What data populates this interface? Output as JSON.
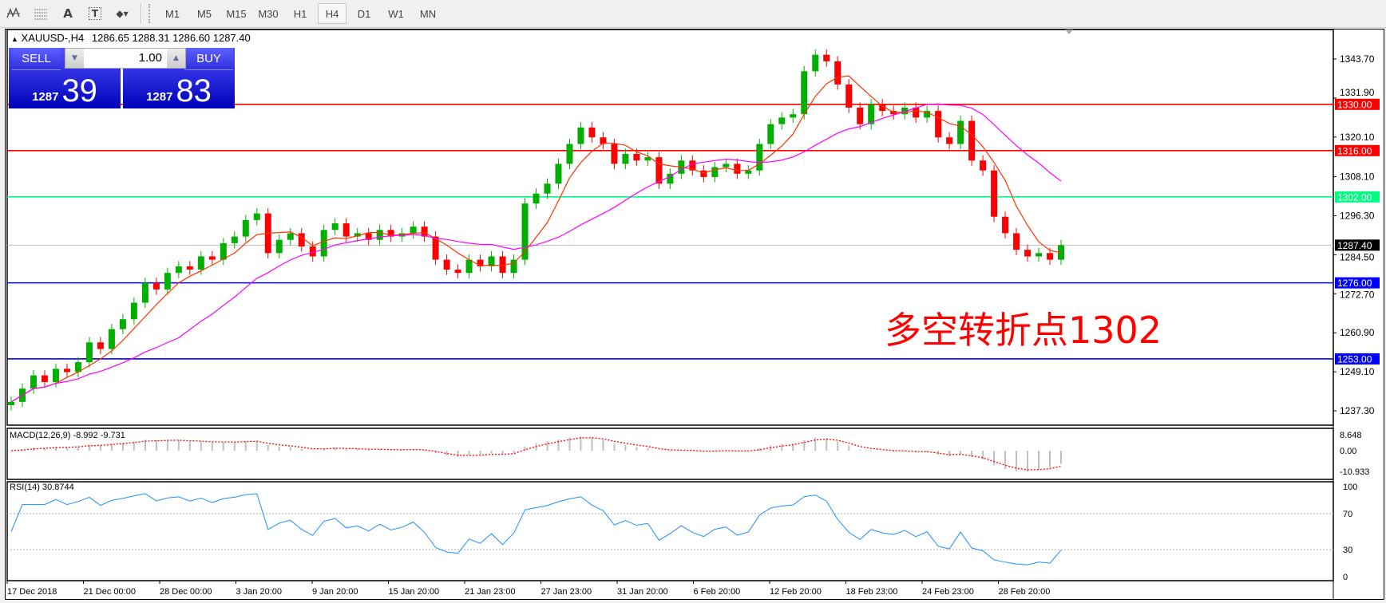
{
  "toolbar": {
    "tools": [
      {
        "name": "elliott-wave-icon",
        "label": ""
      },
      {
        "name": "fibonacci-fan-icon",
        "label": ""
      },
      {
        "name": "text-tool-icon",
        "label": "A"
      },
      {
        "name": "text-label-icon",
        "label": "T"
      },
      {
        "name": "arrows-dropdown-icon",
        "label": ""
      }
    ],
    "timeframes": [
      "M1",
      "M5",
      "M15",
      "M30",
      "H1",
      "H4",
      "D1",
      "W1",
      "MN"
    ],
    "active_timeframe": "H4"
  },
  "chart_header": {
    "symbol": "XAUUSD-,H4",
    "ohlc": "1286.65 1288.31 1286.60 1287.40"
  },
  "trade_panel": {
    "sell_label": "SELL",
    "buy_label": "BUY",
    "lot": "1.00",
    "sell_price_prefix": "1287",
    "sell_price_big": "39",
    "buy_price_prefix": "1287",
    "buy_price_big": "83",
    "color": "#0000c0"
  },
  "annotation": "多空转折点1302",
  "chart_data": [
    {
      "type": "candlestick",
      "symbol": "XAUUSD-",
      "timeframe": "H4",
      "ylim": [
        1233,
        1352
      ],
      "y_ticks": [
        "1343.70",
        "1331.90",
        "1320.10",
        "1308.10",
        "1296.30",
        "1284.50",
        "1272.70",
        "1260.90",
        "1249.10",
        "1237.30"
      ],
      "x_ticks": [
        "17 Dec 2018",
        "21 Dec 00:00",
        "28 Dec 00:00",
        "3 Jan 20:00",
        "9 Jan 20:00",
        "15 Jan 20:00",
        "21 Jan 23:00",
        "27 Jan 23:00",
        "31 Jan 20:00",
        "6 Feb 20:00",
        "12 Feb 20:00",
        "18 Feb 23:00",
        "24 Feb 23:00",
        "28 Feb 20:00"
      ],
      "closes": [
        1240,
        1244,
        1248,
        1246,
        1250,
        1249,
        1252,
        1258,
        1256,
        1262,
        1265,
        1270,
        1276,
        1274,
        1279,
        1281,
        1280,
        1284,
        1283,
        1288,
        1290,
        1295,
        1297,
        1285,
        1289,
        1291,
        1287,
        1284,
        1292,
        1294,
        1290,
        1291,
        1289,
        1292,
        1290,
        1291,
        1293,
        1290,
        1283,
        1280,
        1279,
        1283,
        1281,
        1284,
        1279,
        1283,
        1300,
        1303,
        1306,
        1312,
        1318,
        1323,
        1320,
        1318,
        1312,
        1315,
        1313,
        1314,
        1306,
        1309,
        1313,
        1310,
        1308,
        1311,
        1312,
        1309,
        1310,
        1318,
        1324,
        1326,
        1327,
        1340,
        1345,
        1343,
        1336,
        1329,
        1324,
        1330,
        1328,
        1327,
        1329,
        1326,
        1328,
        1320,
        1318,
        1325,
        1313,
        1310,
        1296,
        1291,
        1286,
        1284,
        1285,
        1283,
        1287.4
      ],
      "up_color": "#00b000",
      "down_color": "#ff0000",
      "moving_averages": [
        {
          "color": "#ff3300"
        },
        {
          "color": "#ff00ff"
        }
      ],
      "horizontal_lines": [
        {
          "value": "1330.00",
          "color": "#ff0000"
        },
        {
          "value": "1316.00",
          "color": "#ff0000"
        },
        {
          "value": "1302.00",
          "color": "#00ff80"
        },
        {
          "value": "1287.40",
          "color": "#c0c0c0",
          "tag_color": "#000000"
        },
        {
          "value": "1276.00",
          "color": "#0000ff"
        },
        {
          "value": "1253.00",
          "color": "#0000ff"
        }
      ]
    },
    {
      "type": "histogram",
      "label": "MACD(12,26,9) -8.992 -9.731",
      "y_ticks": [
        "8.648",
        "0.00",
        "-10.933"
      ],
      "ylim": [
        -10.933,
        8.648
      ],
      "histogram_color": "#c0c0c0",
      "signal_color": "#ff0000"
    },
    {
      "type": "line",
      "label": "RSI(14) 30.8744",
      "y_ticks": [
        "100",
        "70",
        "30",
        "0"
      ],
      "ylim": [
        0,
        100
      ],
      "levels": [
        70,
        30
      ],
      "color": "#1e90ff"
    }
  ]
}
